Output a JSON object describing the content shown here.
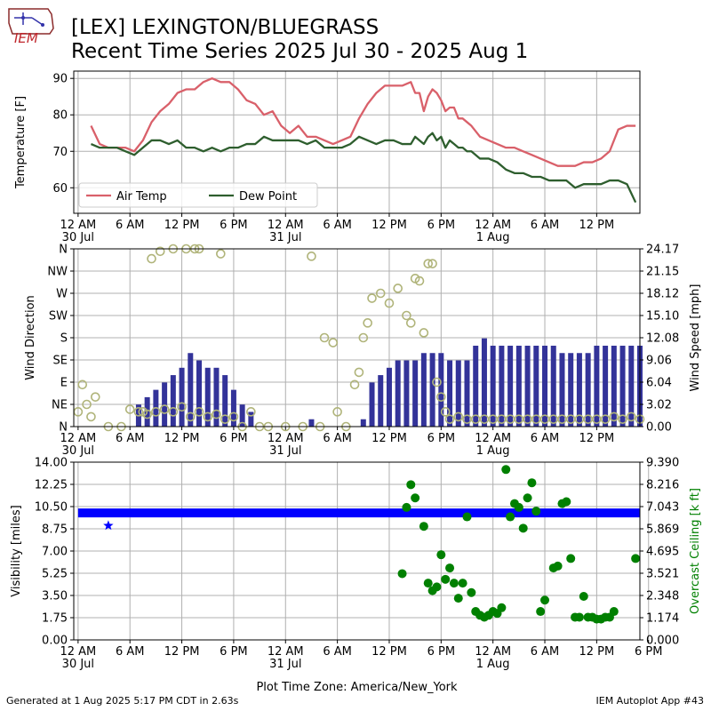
{
  "header": {
    "logo_text": "IEM",
    "title_line1": "[LEX] LEXINGTON/BLUEGRASS",
    "title_line2": "Recent Time Series 2025 Jul 30 - 2025 Aug 1"
  },
  "footer": {
    "generated": "Generated at 1 Aug 2025 5:17 PM CDT in 2.63s",
    "app": "IEM Autoplot App #43"
  },
  "colors": {
    "air_temp": "#d9606a",
    "dew_point": "#2e5e2e",
    "wind_speed_bars": "#333399",
    "wind_direction_markers": "#b0b47a",
    "visibility": "#0000ff",
    "ceiling": "#008000",
    "grid": "#b0b0b0"
  },
  "chart_data": [
    {
      "id": "temperature",
      "type": "line",
      "title": "",
      "xlabel": "",
      "ylabel": "Temperature [F]",
      "ylim": [
        53,
        92
      ],
      "yticks": [
        60,
        70,
        80,
        90
      ],
      "x_unit": "hours since 2025-07-30 00:00 America/New_York",
      "xlim": [
        -0.5,
        65
      ],
      "x_tick_labels": [
        "12 AM\n30 Jul",
        "6 AM",
        "12 PM",
        "6 PM",
        "12 AM\n31 Jul",
        "6 AM",
        "12 PM",
        "6 PM",
        "12 AM\n1 Aug",
        "6 AM",
        "12 PM"
      ],
      "legend": {
        "position": "lower-left",
        "entries": [
          "Air Temp",
          "Dew Point"
        ]
      },
      "grid": true,
      "series": [
        {
          "name": "Air Temp",
          "x": [
            1.5,
            2.5,
            3.5,
            4.5,
            5.5,
            6.5,
            7.5,
            8.5,
            9.5,
            10.5,
            11.5,
            12.5,
            13.5,
            14.5,
            15.5,
            16.5,
            17.5,
            18.5,
            19.5,
            20.5,
            21.5,
            22.5,
            23.5,
            24.5,
            25.5,
            26.5,
            27.5,
            28.5,
            29.5,
            30.5,
            31.5,
            32.5,
            33.5,
            34.5,
            35.5,
            36.5,
            37.5,
            38.5,
            39,
            39.5,
            40,
            40.5,
            41,
            41.5,
            42,
            42.5,
            43,
            43.5,
            44,
            44.5,
            45,
            45.5,
            46.5,
            47.5,
            48.5,
            49.5,
            50.5,
            51.5,
            52.5,
            53.5,
            54.5,
            55.5,
            56.5,
            57.5,
            58.5,
            59.5,
            60.5,
            61.5,
            62.5,
            63.5,
            64.5
          ],
          "values": [
            77,
            72,
            71,
            71,
            71,
            70,
            73,
            78,
            81,
            83,
            86,
            87,
            87,
            89,
            90,
            89,
            89,
            87,
            84,
            83,
            80,
            81,
            77,
            75,
            77,
            74,
            74,
            73,
            72,
            73,
            74,
            79,
            83,
            86,
            88,
            88,
            88,
            89,
            86,
            86,
            81,
            85,
            87,
            86,
            84,
            81,
            82,
            82,
            79,
            79,
            78,
            77,
            74,
            73,
            72,
            71,
            71,
            70,
            69,
            68,
            67,
            66,
            66,
            66,
            67,
            67,
            68,
            70,
            76,
            77,
            77
          ]
        },
        {
          "name": "Dew Point",
          "x": [
            1.5,
            2.5,
            3.5,
            4.5,
            5.5,
            6.5,
            7.5,
            8.5,
            9.5,
            10.5,
            11.5,
            12.5,
            13.5,
            14.5,
            15.5,
            16.5,
            17.5,
            18.5,
            19.5,
            20.5,
            21.5,
            22.5,
            23.5,
            24.5,
            25.5,
            26.5,
            27.5,
            28.5,
            29.5,
            30.5,
            31.5,
            32.5,
            33.5,
            34.5,
            35.5,
            36.5,
            37.5,
            38.5,
            39,
            39.5,
            40,
            40.5,
            41,
            41.5,
            42,
            42.5,
            43,
            43.5,
            44,
            44.5,
            45,
            45.5,
            46.5,
            47.5,
            48.5,
            49.5,
            50.5,
            51.5,
            52.5,
            53.5,
            54.5,
            55.5,
            56.5,
            57.5,
            58.5,
            59.5,
            60.5,
            61.5,
            62.5,
            63.5,
            64.5
          ],
          "values": [
            72,
            71,
            71,
            71,
            70,
            69,
            71,
            73,
            73,
            72,
            73,
            71,
            71,
            70,
            71,
            70,
            71,
            71,
            72,
            72,
            74,
            73,
            73,
            73,
            73,
            72,
            73,
            71,
            71,
            71,
            72,
            74,
            73,
            72,
            73,
            73,
            72,
            72,
            74,
            73,
            72,
            74,
            75,
            73,
            74,
            71,
            73,
            72,
            71,
            71,
            70,
            70,
            68,
            68,
            67,
            65,
            64,
            64,
            63,
            63,
            62,
            62,
            62,
            60,
            61,
            61,
            61,
            62,
            62,
            61,
            56
          ]
        }
      ]
    },
    {
      "id": "wind",
      "type": "bar",
      "title": "",
      "xlabel": "",
      "ylabel": "Wind Direction",
      "ylabel_right": "Wind Speed [mph]",
      "ylim": [
        0,
        360
      ],
      "ylim_right": [
        0,
        24.17
      ],
      "yticks_left": [
        "N",
        "NE",
        "E",
        "SE",
        "S",
        "SW",
        "W",
        "NW",
        "N"
      ],
      "yticks_right": [
        "0.00",
        "3.02",
        "6.04",
        "9.06",
        "12.08",
        "15.10",
        "18.12",
        "21.15",
        "24.17"
      ],
      "grid": true,
      "series": [
        {
          "name": "Wind Speed",
          "axis": "right",
          "x": [
            0,
            2,
            4,
            6,
            7,
            8,
            9,
            10,
            11,
            12,
            13,
            14,
            15,
            16,
            17,
            18,
            19,
            20,
            21,
            22,
            23,
            24,
            25,
            26,
            27,
            28,
            29,
            30,
            31,
            32,
            33,
            34,
            35,
            36,
            37,
            38,
            39,
            40,
            41,
            42,
            43,
            44,
            45,
            46,
            47,
            48,
            49,
            50,
            51,
            52,
            53,
            54,
            55,
            56,
            57,
            58,
            59,
            60,
            61,
            62,
            63,
            64,
            65
          ],
          "values": [
            0,
            0,
            0,
            0,
            3,
            4,
            5,
            6,
            7,
            8,
            10,
            9,
            8,
            8,
            7,
            5,
            3,
            2,
            0,
            0,
            0,
            0,
            0,
            0,
            1,
            0,
            0,
            0,
            0,
            0,
            1,
            6,
            7,
            8,
            9,
            9,
            9,
            10,
            10,
            10,
            9,
            9,
            9,
            11,
            12,
            11,
            11,
            11,
            11,
            11,
            11,
            11,
            11,
            10,
            10,
            10,
            10,
            11,
            11,
            11,
            11,
            11,
            11
          ]
        },
        {
          "name": "Wind Direction",
          "axis": "left",
          "type": "scatter",
          "x": [
            0,
            0.5,
            1,
            1.5,
            2,
            3.5,
            5,
            6,
            7,
            7.5,
            8,
            9,
            10,
            11,
            12,
            13,
            14,
            15,
            16,
            17,
            18,
            19,
            20,
            21,
            22,
            24,
            26,
            28,
            30,
            31,
            32,
            32.5,
            33,
            33.5,
            34,
            35,
            36,
            37,
            38,
            38.5,
            39,
            39.5,
            40,
            40.5,
            41,
            41.5,
            42,
            42.5,
            43,
            44,
            45,
            46,
            47,
            48,
            49,
            50,
            51,
            52,
            53,
            54,
            55,
            56,
            57,
            58,
            59,
            60,
            61,
            62,
            63,
            64,
            65,
            8.5,
            9.5,
            11,
            12.5,
            13.5,
            14,
            16.5,
            27,
            28.5,
            29.5
          ],
          "values": [
            30,
            85,
            45,
            20,
            60,
            0,
            0,
            35,
            30,
            30,
            25,
            30,
            35,
            30,
            40,
            20,
            30,
            20,
            25,
            15,
            20,
            0,
            30,
            0,
            0,
            0,
            0,
            0,
            30,
            0,
            85,
            110,
            180,
            210,
            260,
            270,
            250,
            280,
            225,
            210,
            300,
            295,
            190,
            330,
            330,
            90,
            60,
            30,
            15,
            20,
            15,
            15,
            15,
            15,
            15,
            15,
            15,
            15,
            15,
            15,
            15,
            15,
            15,
            15,
            15,
            15,
            15,
            20,
            15,
            20,
            15,
            340,
            355,
            360,
            360,
            360,
            360,
            350,
            345,
            180,
            170
          ]
        }
      ]
    },
    {
      "id": "visibility",
      "type": "scatter",
      "title": "",
      "xlabel": "Plot Time Zone: America/New_York",
      "ylabel": "Visibility [miles]",
      "ylabel_right": "Overcast Ceiling [k ft]",
      "ylim": [
        0,
        14
      ],
      "ylim_right": [
        0,
        9.39
      ],
      "yticks_left": [
        "0.00",
        "1.75",
        "3.50",
        "5.25",
        "7.00",
        "8.75",
        "10.50",
        "12.25",
        "14.00"
      ],
      "yticks_right": [
        "0.000",
        "1.174",
        "2.348",
        "3.521",
        "4.695",
        "5.869",
        "7.043",
        "8.216",
        "9.390"
      ],
      "x_tick_labels": [
        "12 AM\n30 Jul",
        "6 AM",
        "12 PM",
        "6 PM",
        "12 AM\n31 Jul",
        "6 AM",
        "12 PM",
        "6 PM",
        "12 AM\n1 Aug",
        "6 AM",
        "12 PM",
        "6 PM"
      ],
      "grid": true,
      "series": [
        {
          "name": "Visibility",
          "axis": "left",
          "x": [
            0,
            65
          ],
          "values": [
            10,
            10
          ],
          "note_marker": {
            "x": 3.5,
            "value": 9
          }
        },
        {
          "name": "Overcast Ceiling",
          "axis": "right",
          "x": [
            37.5,
            38,
            38.5,
            39,
            40,
            40.5,
            41,
            41.5,
            42,
            42.5,
            43,
            43.5,
            44,
            44.5,
            45,
            45.5,
            46,
            46.5,
            47,
            47.5,
            48,
            48.5,
            49,
            49.5,
            50,
            50.5,
            51,
            51.5,
            52,
            52.5,
            53,
            53.5,
            54,
            55,
            55.5,
            56,
            56.5,
            57,
            57.5,
            58,
            58.5,
            59,
            59.5,
            60,
            60.5,
            61,
            61.5,
            62,
            64.5
          ],
          "values": [
            3.5,
            7.0,
            8.2,
            7.5,
            6.0,
            3.0,
            2.6,
            2.8,
            4.5,
            3.2,
            3.8,
            3.0,
            2.2,
            3.0,
            6.5,
            2.5,
            1.5,
            1.3,
            1.2,
            1.3,
            1.5,
            1.4,
            1.7,
            9.0,
            6.5,
            7.2,
            7.0,
            5.9,
            7.5,
            8.3,
            6.8,
            1.5,
            2.1,
            3.8,
            3.9,
            7.2,
            7.3,
            4.3,
            1.2,
            1.2,
            2.3,
            1.2,
            1.2,
            1.1,
            1.1,
            1.2,
            1.2,
            1.5,
            4.3
          ]
        }
      ]
    }
  ]
}
